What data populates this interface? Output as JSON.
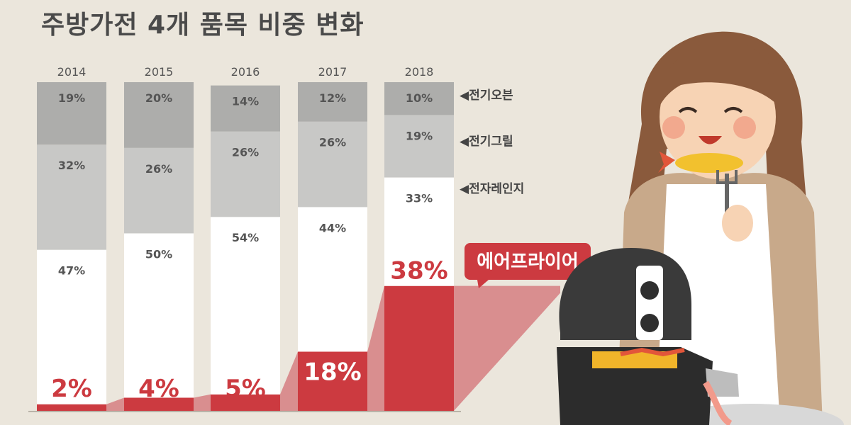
{
  "chart_data": {
    "type": "bar",
    "stacked": true,
    "title": "주방가전 4개 품목 비중 변화",
    "categories": [
      "2014",
      "2015",
      "2016",
      "2017",
      "2018"
    ],
    "value_suffix": "%",
    "series": [
      {
        "name": "에어프라이어",
        "values": [
          2,
          4,
          5,
          18,
          38
        ],
        "color": "#cc3a40"
      },
      {
        "name": "전자레인지",
        "values": [
          47,
          50,
          54,
          44,
          33
        ],
        "color": "#ffffff"
      },
      {
        "name": "전기그릴",
        "values": [
          32,
          26,
          26,
          26,
          19
        ],
        "color": "#c8c8c6"
      },
      {
        "name": "전기오븐",
        "values": [
          19,
          20,
          14,
          12,
          10
        ],
        "color": "#adadab"
      }
    ],
    "legend_marker": "◀",
    "highlight_label": "에어프라이어",
    "ylim": [
      0,
      100
    ]
  },
  "colors": {
    "background": "#ebe6dc",
    "accent": "#cc3a40",
    "text": "#555555"
  }
}
